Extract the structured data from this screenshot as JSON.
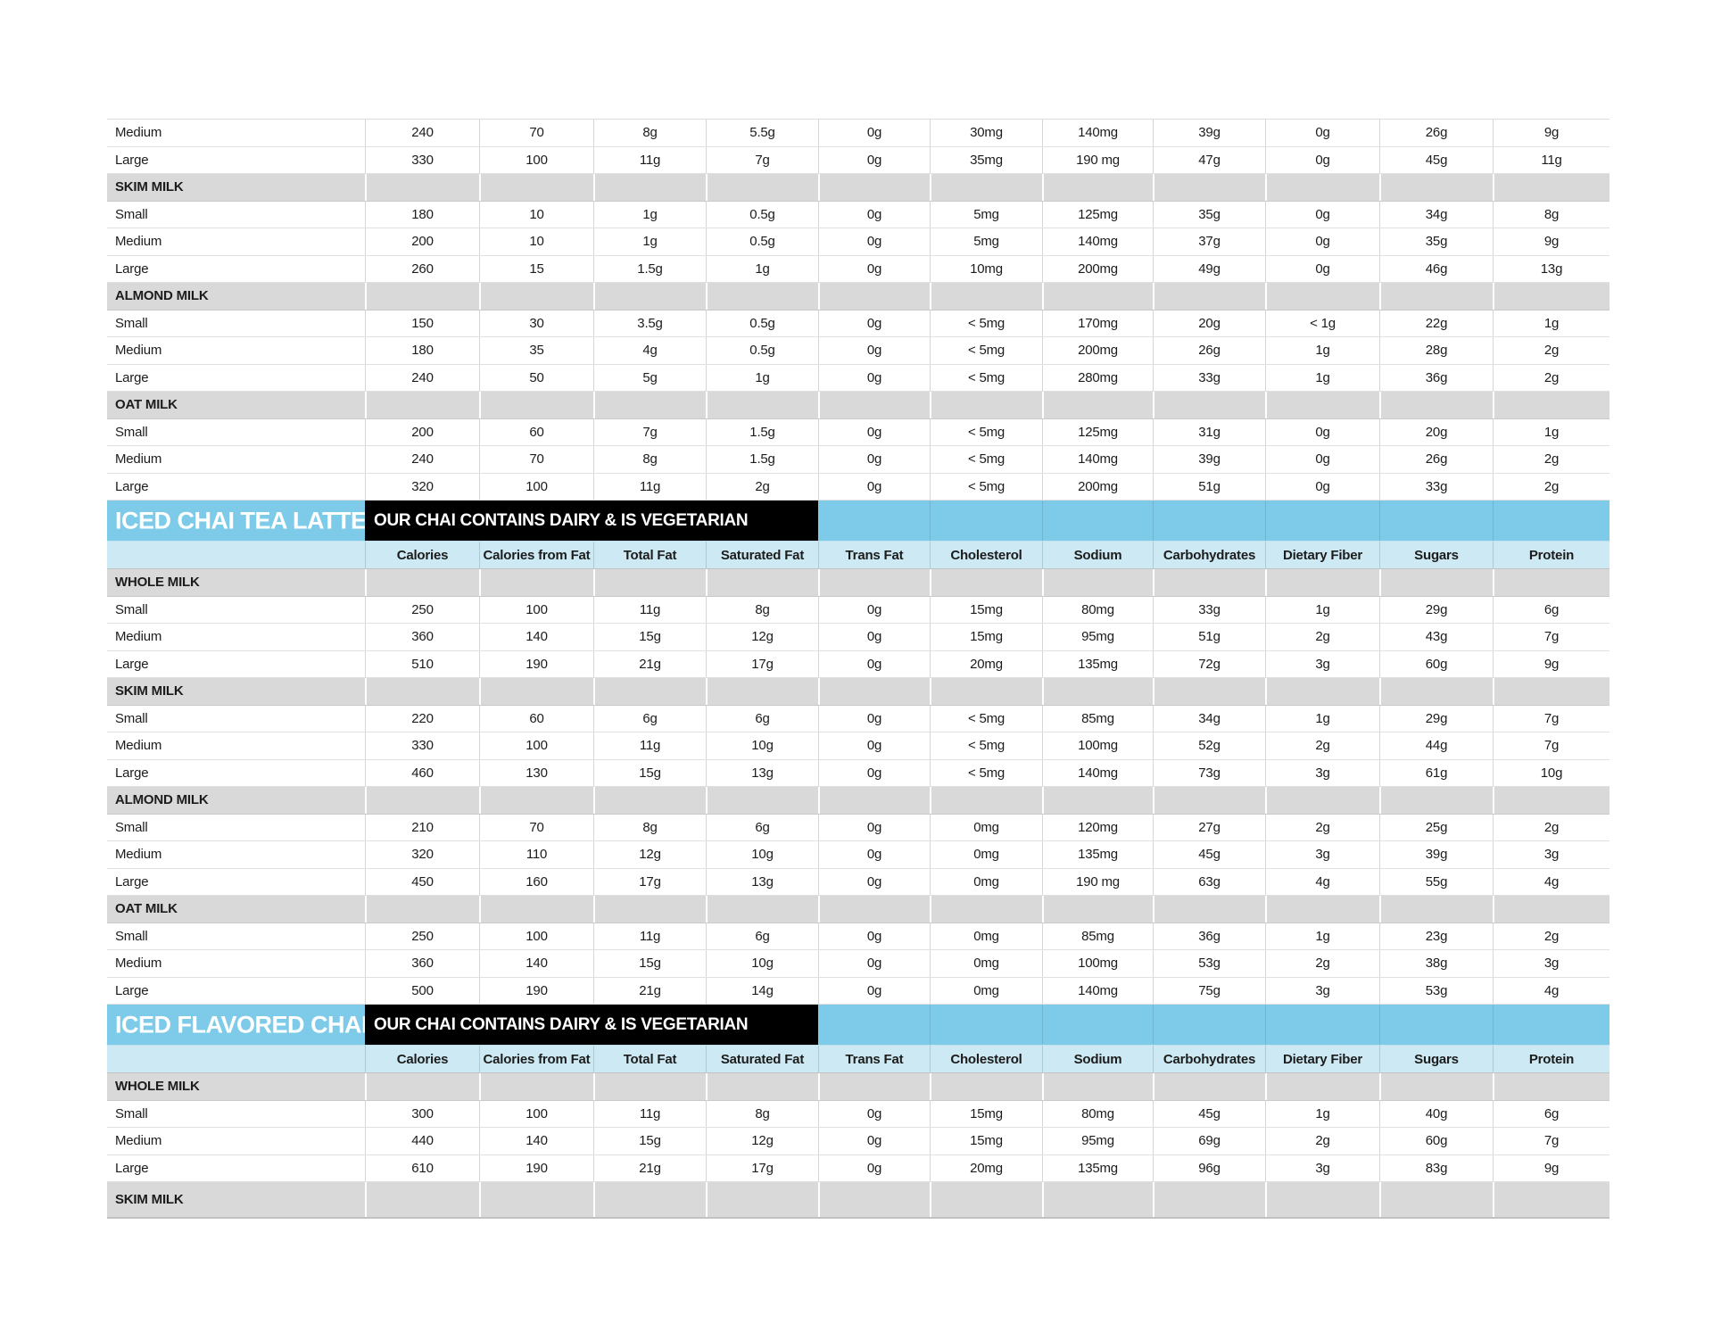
{
  "document": {
    "kind": "nutrition-facts-table"
  },
  "colors": {
    "section_bar_blue": "#7ecbe9",
    "column_header_blue": "#cde9f4",
    "group_row_gray": "#d9d9d9",
    "note_box_black": "#000000",
    "text": "#1c1c1c",
    "grid_line": "#d6d6d6"
  },
  "columns": [
    "Calories",
    "Calories from Fat",
    "Total Fat",
    "Saturated Fat",
    "Trans Fat",
    "Cholesterol",
    "Sodium",
    "Carbohydrates",
    "Dietary Fiber",
    "Sugars",
    "Protein"
  ],
  "sections": [
    {
      "title": null,
      "note": null,
      "show_columns": false,
      "groups": [
        {
          "label": null,
          "rows": [
            [
              "Medium",
              "240",
              "70",
              "8g",
              "5.5g",
              "0g",
              "30mg",
              "140mg",
              "39g",
              "0g",
              "26g",
              "9g"
            ],
            [
              "Large",
              "330",
              "100",
              "11g",
              "7g",
              "0g",
              "35mg",
              "190 mg",
              "47g",
              "0g",
              "45g",
              "11g"
            ]
          ]
        },
        {
          "label": "SKIM MILK",
          "rows": [
            [
              "Small",
              "180",
              "10",
              "1g",
              "0.5g",
              "0g",
              "5mg",
              "125mg",
              "35g",
              "0g",
              "34g",
              "8g"
            ],
            [
              "Medium",
              "200",
              "10",
              "1g",
              "0.5g",
              "0g",
              "5mg",
              "140mg",
              "37g",
              "0g",
              "35g",
              "9g"
            ],
            [
              "Large",
              "260",
              "15",
              "1.5g",
              "1g",
              "0g",
              "10mg",
              "200mg",
              "49g",
              "0g",
              "46g",
              "13g"
            ]
          ]
        },
        {
          "label": "ALMOND MILK",
          "rows": [
            [
              "Small",
              "150",
              "30",
              "3.5g",
              "0.5g",
              "0g",
              "< 5mg",
              "170mg",
              "20g",
              "< 1g",
              "22g",
              "1g"
            ],
            [
              "Medium",
              "180",
              "35",
              "4g",
              "0.5g",
              "0g",
              "< 5mg",
              "200mg",
              "26g",
              "1g",
              "28g",
              "2g"
            ],
            [
              "Large",
              "240",
              "50",
              "5g",
              "1g",
              "0g",
              "< 5mg",
              "280mg",
              "33g",
              "1g",
              "36g",
              "2g"
            ]
          ]
        },
        {
          "label": "OAT MILK",
          "rows": [
            [
              "Small",
              "200",
              "60",
              "7g",
              "1.5g",
              "0g",
              "< 5mg",
              "125mg",
              "31g",
              "0g",
              "20g",
              "1g"
            ],
            [
              "Medium",
              "240",
              "70",
              "8g",
              "1.5g",
              "0g",
              "< 5mg",
              "140mg",
              "39g",
              "0g",
              "26g",
              "2g"
            ],
            [
              "Large",
              "320",
              "100",
              "11g",
              "2g",
              "0g",
              "< 5mg",
              "200mg",
              "51g",
              "0g",
              "33g",
              "2g"
            ]
          ]
        }
      ]
    },
    {
      "title": "ICED CHAI TEA LATTE",
      "note": "OUR CHAI CONTAINS DAIRY & IS VEGETARIAN",
      "show_columns": true,
      "groups": [
        {
          "label": "WHOLE MILK",
          "rows": [
            [
              "Small",
              "250",
              "100",
              "11g",
              "8g",
              "0g",
              "15mg",
              "80mg",
              "33g",
              "1g",
              "29g",
              "6g"
            ],
            [
              "Medium",
              "360",
              "140",
              "15g",
              "12g",
              "0g",
              "15mg",
              "95mg",
              "51g",
              "2g",
              "43g",
              "7g"
            ],
            [
              "Large",
              "510",
              "190",
              "21g",
              "17g",
              "0g",
              "20mg",
              "135mg",
              "72g",
              "3g",
              "60g",
              "9g"
            ]
          ]
        },
        {
          "label": "SKIM MILK",
          "rows": [
            [
              "Small",
              "220",
              "60",
              "6g",
              "6g",
              "0g",
              "< 5mg",
              "85mg",
              "34g",
              "1g",
              "29g",
              "7g"
            ],
            [
              "Medium",
              "330",
              "100",
              "11g",
              "10g",
              "0g",
              "< 5mg",
              "100mg",
              "52g",
              "2g",
              "44g",
              "7g"
            ],
            [
              "Large",
              "460",
              "130",
              "15g",
              "13g",
              "0g",
              "< 5mg",
              "140mg",
              "73g",
              "3g",
              "61g",
              "10g"
            ]
          ]
        },
        {
          "label": "ALMOND MILK",
          "rows": [
            [
              "Small",
              "210",
              "70",
              "8g",
              "6g",
              "0g",
              "0mg",
              "120mg",
              "27g",
              "2g",
              "25g",
              "2g"
            ],
            [
              "Medium",
              "320",
              "110",
              "12g",
              "10g",
              "0g",
              "0mg",
              "135mg",
              "45g",
              "3g",
              "39g",
              "3g"
            ],
            [
              "Large",
              "450",
              "160",
              "17g",
              "13g",
              "0g",
              "0mg",
              "190 mg",
              "63g",
              "4g",
              "55g",
              "4g"
            ]
          ]
        },
        {
          "label": "OAT MILK",
          "rows": [
            [
              "Small",
              "250",
              "100",
              "11g",
              "6g",
              "0g",
              "0mg",
              "85mg",
              "36g",
              "1g",
              "23g",
              "2g"
            ],
            [
              "Medium",
              "360",
              "140",
              "15g",
              "10g",
              "0g",
              "0mg",
              "100mg",
              "53g",
              "2g",
              "38g",
              "3g"
            ],
            [
              "Large",
              "500",
              "190",
              "21g",
              "14g",
              "0g",
              "0mg",
              "140mg",
              "75g",
              "3g",
              "53g",
              "4g"
            ]
          ]
        }
      ]
    },
    {
      "title": "ICED FLAVORED CHAI TEA LATTE",
      "note": "OUR CHAI CONTAINS DAIRY & IS VEGETARIAN",
      "show_columns": true,
      "groups": [
        {
          "label": "WHOLE MILK",
          "rows": [
            [
              "Small",
              "300",
              "100",
              "11g",
              "8g",
              "0g",
              "15mg",
              "80mg",
              "45g",
              "1g",
              "40g",
              "6g"
            ],
            [
              "Medium",
              "440",
              "140",
              "15g",
              "12g",
              "0g",
              "15mg",
              "95mg",
              "69g",
              "2g",
              "60g",
              "7g"
            ],
            [
              "Large",
              "610",
              "190",
              "21g",
              "17g",
              "0g",
              "20mg",
              "135mg",
              "96g",
              "3g",
              "83g",
              "9g"
            ]
          ]
        },
        {
          "label": "SKIM MILK",
          "rows": []
        }
      ]
    }
  ]
}
